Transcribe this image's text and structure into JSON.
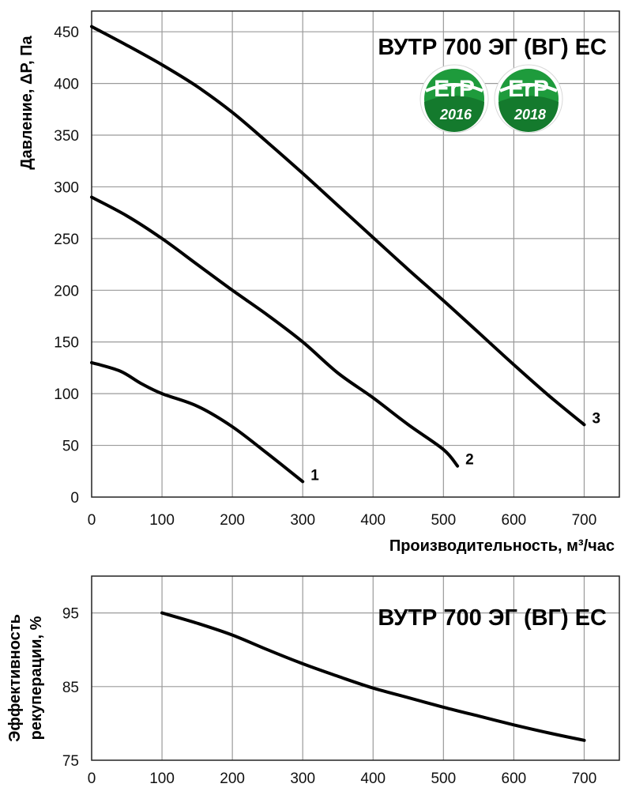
{
  "colors": {
    "curve": "#000000",
    "grid": "#9a9a9a",
    "badge_green": "#1e9b3c",
    "badge_light": "#6cc24a"
  },
  "chart_data": [
    {
      "type": "line",
      "title": "ВУТР 700 ЭГ (ВГ) ЕС",
      "xlabel": "Производительность, м³/час",
      "ylabel": "Давление, ΔР, Па",
      "xlim": [
        0,
        750
      ],
      "ylim": [
        0,
        470
      ],
      "xticks": [
        0,
        100,
        200,
        300,
        400,
        500,
        600,
        700
      ],
      "yticks": [
        0,
        50,
        100,
        150,
        200,
        250,
        300,
        350,
        400,
        450
      ],
      "grid": true,
      "badges": [
        {
          "label": "ErP",
          "year": "2016"
        },
        {
          "label": "ErP",
          "year": "2018"
        }
      ],
      "series": [
        {
          "name": "1",
          "x": [
            0,
            40,
            70,
            100,
            150,
            200,
            250,
            300
          ],
          "y": [
            130,
            122,
            110,
            100,
            88,
            68,
            42,
            15
          ]
        },
        {
          "name": "2",
          "x": [
            0,
            50,
            100,
            150,
            200,
            250,
            300,
            350,
            400,
            450,
            500,
            520
          ],
          "y": [
            290,
            272,
            250,
            225,
            200,
            176,
            150,
            120,
            96,
            70,
            46,
            30
          ]
        },
        {
          "name": "3",
          "x": [
            0,
            50,
            100,
            150,
            200,
            250,
            300,
            350,
            400,
            450,
            500,
            550,
            600,
            650,
            700
          ],
          "y": [
            455,
            437,
            418,
            397,
            372,
            343,
            313,
            282,
            251,
            220,
            190,
            159,
            128,
            98,
            70
          ]
        }
      ]
    },
    {
      "type": "line",
      "title": "ВУТР 700 ЭГ (ВГ) ЕС",
      "xlabel": "",
      "ylabel": "Эффективность рекуперации, %",
      "ylabel_lines": [
        "Эффективность",
        "рекуперации, %"
      ],
      "xlim": [
        0,
        750
      ],
      "ylim": [
        75,
        100
      ],
      "xticks": [
        0,
        100,
        200,
        300,
        400,
        500,
        600,
        700
      ],
      "yticks": [
        75,
        85,
        95
      ],
      "grid": true,
      "series": [
        {
          "x": [
            100,
            150,
            200,
            250,
            300,
            350,
            400,
            450,
            500,
            550,
            600,
            650,
            700
          ],
          "y": [
            95,
            93.6,
            92.0,
            90.0,
            88.1,
            86.4,
            84.8,
            83.5,
            82.2,
            81.0,
            79.8,
            78.7,
            77.7
          ]
        }
      ]
    }
  ]
}
